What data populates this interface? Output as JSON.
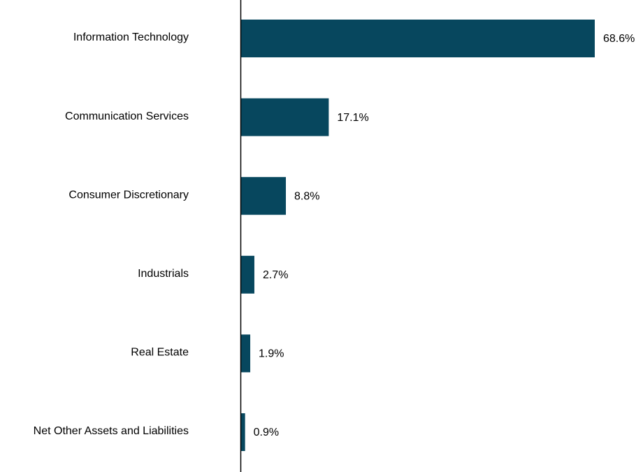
{
  "chart_data": {
    "type": "bar",
    "orientation": "horizontal",
    "categories": [
      "Information Technology",
      "Communication Services",
      "Consumer Discretionary",
      "Industrials",
      "Real Estate",
      "Net Other Assets and Liabilities"
    ],
    "values": [
      68.6,
      17.1,
      8.8,
      2.7,
      1.9,
      0.9
    ],
    "value_labels": [
      "68.6%",
      "17.1%",
      "8.8%",
      "2.7%",
      "1.9%",
      "0.9%"
    ],
    "title": "",
    "xlabel": "",
    "ylabel": "",
    "xlim": [
      0,
      68.6
    ],
    "grid": false,
    "legend": "none",
    "bar_color": "#07475e",
    "axis_color": "#000000"
  }
}
